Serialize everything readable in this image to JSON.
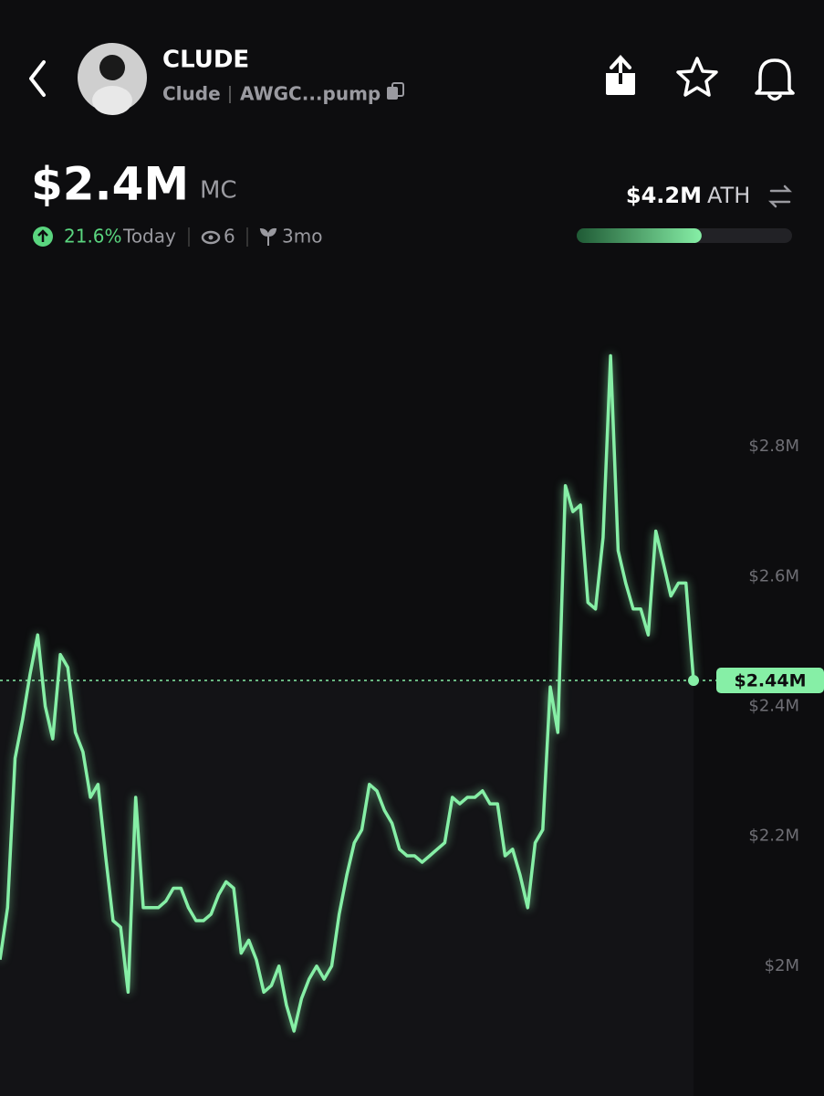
{
  "header": {
    "title": "CLUDE",
    "name": "Clude",
    "address": "AWGC...pump"
  },
  "stats": {
    "market_cap": "$2.4M",
    "mc_label": "MC",
    "change": "21.6%",
    "period": "Today",
    "watchers": "6",
    "age": "3mo",
    "ath": "$4.2M",
    "ath_label": "ATH",
    "ath_progress": 58
  },
  "chart_data": {
    "type": "line",
    "color": "#86efa6",
    "values": [
      2010000,
      2090000,
      2320000,
      2380000,
      2450000,
      2510000,
      2400000,
      2350000,
      2480000,
      2460000,
      2360000,
      2330000,
      2260000,
      2280000,
      2170000,
      2070000,
      2060000,
      1960000,
      2260000,
      2090000,
      2090000,
      2090000,
      2100000,
      2120000,
      2120000,
      2090000,
      2070000,
      2070000,
      2080000,
      2110000,
      2130000,
      2120000,
      2020000,
      2040000,
      2010000,
      1960000,
      1970000,
      2000000,
      1940000,
      1900000,
      1950000,
      1980000,
      2000000,
      1980000,
      2000000,
      2080000,
      2140000,
      2190000,
      2210000,
      2280000,
      2270000,
      2240000,
      2220000,
      2180000,
      2170000,
      2170000,
      2160000,
      2170000,
      2180000,
      2190000,
      2260000,
      2250000,
      2260000,
      2260000,
      2270000,
      2250000,
      2250000,
      2170000,
      2180000,
      2140000,
      2090000,
      2190000,
      2210000,
      2430000,
      2360000,
      2740000,
      2700000,
      2710000,
      2560000,
      2550000,
      2660000,
      2940000,
      2640000,
      2590000,
      2550000,
      2550000,
      2510000,
      2670000,
      2620000,
      2570000,
      2590000,
      2590000,
      2440000
    ],
    "ylim": [
      1800000,
      3080000
    ],
    "yticks": [
      {
        "value": 2000000,
        "label": "$2M"
      },
      {
        "value": 2200000,
        "label": "$2.2M"
      },
      {
        "value": 2400000,
        "label": "$2.4M"
      },
      {
        "value": 2600000,
        "label": "$2.6M"
      },
      {
        "value": 2800000,
        "label": "$2.8M"
      }
    ],
    "current": {
      "value": 2440000,
      "label": "$2.44M"
    }
  }
}
